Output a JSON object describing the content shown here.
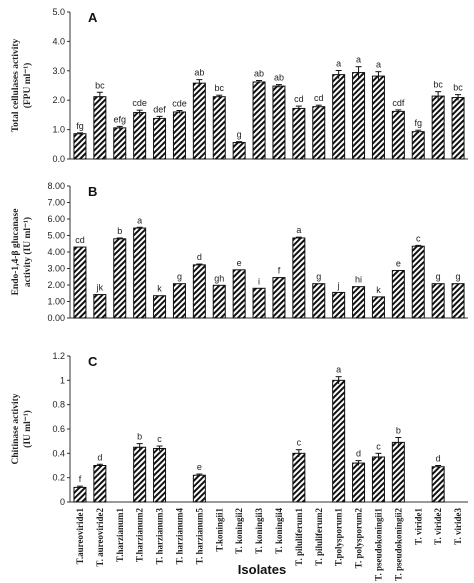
{
  "chart_data": {
    "type": "bar",
    "categories": [
      "T.aureoviride1",
      "T. aureoviride2",
      "T.harzianum1",
      "T.harzianum2",
      "T. harzianum3",
      "T. harzianum4",
      "T. harzianum5",
      "T.koningii1",
      "T. koningii2",
      "T. koningii3",
      "T. koningii4",
      "T. piluliferum1",
      "T. piluliferum2",
      "T.polysporum1",
      "T. polysporum2",
      "T. pseudokoningii1",
      "T. pseudokoningii2",
      "T. viride1",
      "T. viride2",
      "T. viride3"
    ],
    "xlabel": "Isolates",
    "panels": [
      {
        "panel": "A",
        "ylabel_line1": "Total cellulases activity",
        "ylabel_line2": "(FPU ml⁻¹)",
        "ylim": [
          0,
          5
        ],
        "yticks": [
          "0.0",
          "1.0",
          "2.0",
          "3.0",
          "4.0",
          "5.0"
        ],
        "values": [
          0.86,
          2.12,
          1.06,
          1.58,
          1.38,
          1.6,
          2.58,
          2.12,
          0.56,
          2.62,
          2.48,
          1.72,
          1.78,
          2.87,
          2.94,
          2.82,
          1.62,
          0.93,
          2.14,
          2.09
        ],
        "errors": [
          0.03,
          0.15,
          0.05,
          0.08,
          0.07,
          0.05,
          0.12,
          0.05,
          0.03,
          0.05,
          0.05,
          0.08,
          0.05,
          0.14,
          0.2,
          0.15,
          0.05,
          0.05,
          0.15,
          0.1
        ],
        "labels": [
          "fg",
          "bc",
          "efg",
          "cde",
          "def",
          "cde",
          "ab",
          "bc",
          "g",
          "ab",
          "ab",
          "cd",
          "cd",
          "a",
          "a",
          "a",
          "cdf",
          "fg",
          "bc",
          "bc"
        ]
      },
      {
        "panel": "B",
        "ylabel_line1": "Endo-1,4-β glucanase",
        "ylabel_line2": "activity  (IU ml⁻¹)",
        "ylim": [
          0,
          8
        ],
        "yticks": [
          "0.00",
          "1.00",
          "2.00",
          "3.00",
          "4.00",
          "5.00",
          "6.00",
          "7.00",
          "8.00"
        ],
        "values": [
          4.3,
          1.42,
          4.8,
          5.45,
          1.35,
          2.08,
          3.22,
          1.98,
          2.92,
          1.8,
          2.45,
          4.85,
          2.08,
          1.55,
          1.9,
          1.28,
          2.88,
          4.35,
          2.08,
          2.08
        ],
        "errors": [
          0,
          0,
          0.05,
          0.05,
          0,
          0,
          0.05,
          0,
          0,
          0,
          0,
          0.05,
          0,
          0,
          0,
          0,
          0,
          0.05,
          0,
          0
        ],
        "labels": [
          "cd",
          "jk",
          "b",
          "a",
          "k",
          "g",
          "d",
          "gh",
          "e",
          "i",
          "f",
          "a",
          "g",
          "j",
          "hi",
          "k",
          "e",
          "c",
          "g",
          "g"
        ]
      },
      {
        "panel": "C",
        "ylabel_line1": "Chitinase activity",
        "ylabel_line2": "(IU ml⁻¹)",
        "ylim": [
          0,
          1.2
        ],
        "yticks": [
          "0",
          "0.2",
          "0.4",
          "0.6",
          "0.8",
          "1",
          "1.2"
        ],
        "values": [
          0.12,
          0.3,
          0,
          0.45,
          0.44,
          0,
          0.22,
          0,
          0,
          0,
          0,
          0.4,
          0,
          1.0,
          0.32,
          0.37,
          0.49,
          0,
          0.29,
          0
        ],
        "errors": [
          0.01,
          0.01,
          0,
          0.03,
          0.02,
          0,
          0.01,
          0,
          0,
          0,
          0,
          0.03,
          0,
          0.03,
          0.02,
          0.03,
          0.04,
          0,
          0.01,
          0
        ],
        "labels": [
          "f",
          "d",
          "",
          "b",
          "c",
          "",
          "e",
          "",
          "",
          "",
          "",
          "c",
          "",
          "a",
          "d",
          "c",
          "b",
          "",
          "d",
          ""
        ]
      }
    ]
  }
}
